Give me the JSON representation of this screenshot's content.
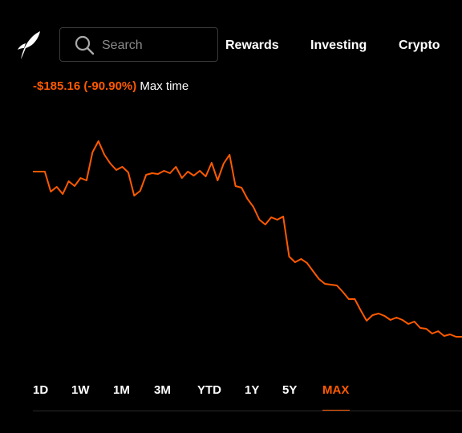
{
  "nav": {
    "search_placeholder": "Search",
    "links": [
      "Rewards",
      "Investing",
      "Crypto"
    ]
  },
  "performance": {
    "change": "-$185.16 (-90.90%)",
    "period": "Max time"
  },
  "chart_data": {
    "type": "line",
    "color": "#ff5a00",
    "start_color": "#8a8a8a",
    "ylim": [
      0,
      480
    ],
    "values": [
      266,
      266,
      266,
      241,
      247,
      238,
      254,
      248,
      258,
      255,
      290,
      304,
      287,
      276,
      268,
      272,
      265,
      236,
      242,
      262,
      264,
      263,
      267,
      264,
      272,
      258,
      266,
      261,
      267,
      260,
      277,
      255,
      276,
      287,
      248,
      246,
      232,
      222,
      206,
      200,
      209,
      206,
      210,
      160,
      153,
      157,
      152,
      142,
      132,
      126,
      125,
      124,
      116,
      107,
      107,
      93,
      80,
      87,
      89,
      86,
      81,
      84,
      81,
      76,
      79,
      71,
      70,
      64,
      67,
      61,
      63,
      60,
      60
    ]
  },
  "ranges": {
    "items": [
      "1D",
      "1W",
      "1M",
      "3M",
      "YTD",
      "1Y",
      "5Y",
      "MAX"
    ],
    "selected": 7
  }
}
